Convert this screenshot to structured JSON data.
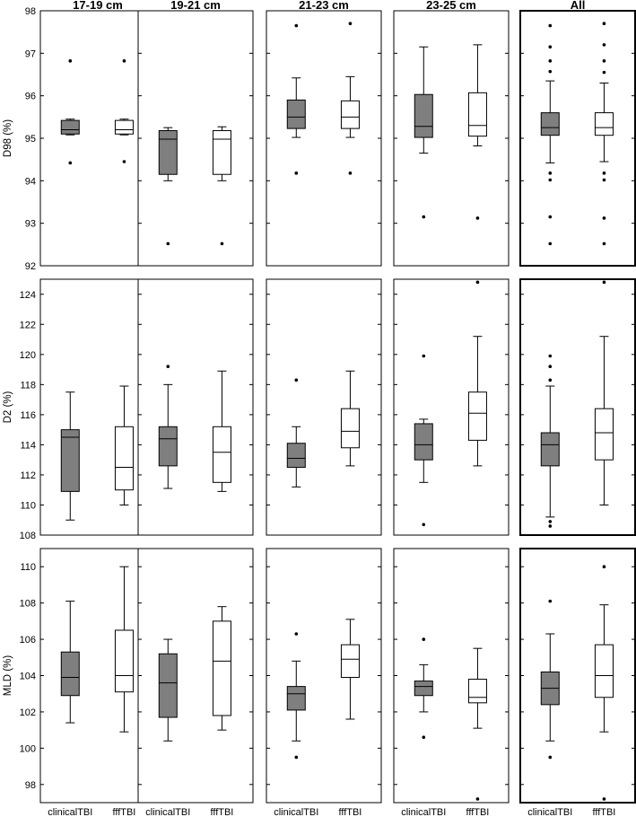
{
  "columns": [
    "17-19 cm",
    "19-21 cm",
    "21-23 cm",
    "23-25 cm",
    "All"
  ],
  "rows": [
    {
      "ylabel": "D98 (%)",
      "ylim": [
        92,
        98
      ],
      "ticks": [
        92,
        93,
        94,
        95,
        96,
        97,
        98
      ]
    },
    {
      "ylabel": "D2 (%)",
      "ylim": [
        108,
        125
      ],
      "ticks": [
        108,
        110,
        112,
        114,
        116,
        118,
        120,
        122,
        124
      ]
    },
    {
      "ylabel": "MLD (%)",
      "ylim": [
        97,
        111
      ],
      "ticks": [
        98,
        100,
        102,
        104,
        106,
        108,
        110
      ]
    }
  ],
  "categories": [
    "clinicalTBI",
    "fffTBI"
  ],
  "colors": {
    "clinicalTBI": "#7f7f7f",
    "fffTBI": "#ffffff",
    "line": "#000000",
    "outlier": "#000000"
  },
  "chart_data": {
    "type": "box",
    "layout": "3 rows x 5 columns",
    "columns": [
      "17-19 cm",
      "19-21 cm",
      "21-23 cm",
      "23-25 cm",
      "All"
    ],
    "series": [
      {
        "name": "clinicalTBI",
        "color": "#7f7f7f"
      },
      {
        "name": "fffTBI",
        "color": "#ffffff"
      }
    ],
    "panels": [
      {
        "metric": "D98 (%)",
        "column": "17-19 cm",
        "boxes": [
          {
            "series": "clinicalTBI",
            "whisker_low": 95.08,
            "q1": 95.1,
            "median": 95.2,
            "q3": 95.42,
            "whisker_high": 95.45,
            "outliers": [
              96.82,
              94.42
            ]
          },
          {
            "series": "fffTBI",
            "whisker_low": 95.08,
            "q1": 95.1,
            "median": 95.2,
            "q3": 95.42,
            "whisker_high": 95.45,
            "outliers": [
              96.82,
              94.45
            ]
          }
        ]
      },
      {
        "metric": "D98 (%)",
        "column": "19-21 cm",
        "boxes": [
          {
            "series": "clinicalTBI",
            "whisker_low": 94.0,
            "q1": 94.15,
            "median": 94.98,
            "q3": 95.18,
            "whisker_high": 95.25,
            "outliers": [
              92.52
            ]
          },
          {
            "series": "fffTBI",
            "whisker_low": 94.0,
            "q1": 94.15,
            "median": 94.98,
            "q3": 95.18,
            "whisker_high": 95.27,
            "outliers": [
              92.52
            ]
          }
        ]
      },
      {
        "metric": "D98 (%)",
        "column": "21-23 cm",
        "boxes": [
          {
            "series": "clinicalTBI",
            "whisker_low": 95.02,
            "q1": 95.23,
            "median": 95.5,
            "q3": 95.9,
            "whisker_high": 96.42,
            "outliers": [
              97.65,
              94.18
            ]
          },
          {
            "series": "fffTBI",
            "whisker_low": 95.02,
            "q1": 95.23,
            "median": 95.5,
            "q3": 95.88,
            "whisker_high": 96.45,
            "outliers": [
              97.7,
              94.18
            ]
          }
        ]
      },
      {
        "metric": "D98 (%)",
        "column": "23-25 cm",
        "boxes": [
          {
            "series": "clinicalTBI",
            "whisker_low": 94.65,
            "q1": 95.02,
            "median": 95.28,
            "q3": 96.03,
            "whisker_high": 97.15,
            "outliers": [
              93.15
            ]
          },
          {
            "series": "fffTBI",
            "whisker_low": 94.82,
            "q1": 95.05,
            "median": 95.3,
            "q3": 96.07,
            "whisker_high": 97.2,
            "outliers": [
              93.12
            ]
          }
        ]
      },
      {
        "metric": "D98 (%)",
        "column": "All",
        "boxes": [
          {
            "series": "clinicalTBI",
            "whisker_low": 94.42,
            "q1": 95.07,
            "median": 95.25,
            "q3": 95.6,
            "whisker_high": 96.35,
            "outliers": [
              97.65,
              97.15,
              96.82,
              96.57,
              94.18,
              94.02,
              93.15,
              92.52
            ]
          },
          {
            "series": "fffTBI",
            "whisker_low": 94.45,
            "q1": 95.07,
            "median": 95.25,
            "q3": 95.6,
            "whisker_high": 96.3,
            "outliers": [
              97.7,
              97.2,
              96.82,
              96.55,
              94.18,
              94.02,
              93.12,
              92.52
            ]
          }
        ]
      },
      {
        "metric": "D2 (%)",
        "column": "17-19 cm",
        "boxes": [
          {
            "series": "clinicalTBI",
            "whisker_low": 109.0,
            "q1": 110.9,
            "median": 114.5,
            "q3": 115.0,
            "whisker_high": 117.5,
            "outliers": []
          },
          {
            "series": "fffTBI",
            "whisker_low": 110.0,
            "q1": 111.0,
            "median": 112.5,
            "q3": 115.2,
            "whisker_high": 117.9,
            "outliers": []
          }
        ]
      },
      {
        "metric": "D2 (%)",
        "column": "19-21 cm",
        "boxes": [
          {
            "series": "clinicalTBI",
            "whisker_low": 111.1,
            "q1": 112.6,
            "median": 114.4,
            "q3": 115.2,
            "whisker_high": 118.0,
            "outliers": [
              119.2
            ]
          },
          {
            "series": "fffTBI",
            "whisker_low": 110.9,
            "q1": 111.5,
            "median": 113.5,
            "q3": 115.2,
            "whisker_high": 118.9,
            "outliers": []
          }
        ]
      },
      {
        "metric": "D2 (%)",
        "column": "21-23 cm",
        "boxes": [
          {
            "series": "clinicalTBI",
            "whisker_low": 111.2,
            "q1": 112.5,
            "median": 113.1,
            "q3": 114.1,
            "whisker_high": 115.2,
            "outliers": [
              118.3
            ]
          },
          {
            "series": "fffTBI",
            "whisker_low": 112.6,
            "q1": 113.8,
            "median": 114.9,
            "q3": 116.4,
            "whisker_high": 118.9,
            "outliers": []
          }
        ]
      },
      {
        "metric": "D2 (%)",
        "column": "23-25 cm",
        "boxes": [
          {
            "series": "clinicalTBI",
            "whisker_low": 111.5,
            "q1": 113.0,
            "median": 114.0,
            "q3": 115.4,
            "whisker_high": 115.7,
            "outliers": [
              119.9,
              108.7
            ]
          },
          {
            "series": "fffTBI",
            "whisker_low": 112.6,
            "q1": 114.3,
            "median": 116.1,
            "q3": 117.5,
            "whisker_high": 121.2,
            "outliers": [
              124.8
            ]
          }
        ]
      },
      {
        "metric": "D2 (%)",
        "column": "All",
        "boxes": [
          {
            "series": "clinicalTBI",
            "whisker_low": 109.2,
            "q1": 112.6,
            "median": 114.0,
            "q3": 114.8,
            "whisker_high": 117.9,
            "outliers": [
              119.9,
              119.2,
              118.3,
              108.9,
              108.6
            ]
          },
          {
            "series": "fffTBI",
            "whisker_low": 110.0,
            "q1": 113.0,
            "median": 114.8,
            "q3": 116.4,
            "whisker_high": 121.2,
            "outliers": [
              124.8
            ]
          }
        ]
      },
      {
        "metric": "MLD (%)",
        "column": "17-19 cm",
        "boxes": [
          {
            "series": "clinicalTBI",
            "whisker_low": 101.4,
            "q1": 102.9,
            "median": 103.9,
            "q3": 105.3,
            "whisker_high": 108.1,
            "outliers": []
          },
          {
            "series": "fffTBI",
            "whisker_low": 100.9,
            "q1": 103.1,
            "median": 104.0,
            "q3": 106.5,
            "whisker_high": 110.0,
            "outliers": []
          }
        ]
      },
      {
        "metric": "MLD (%)",
        "column": "19-21 cm",
        "boxes": [
          {
            "series": "clinicalTBI",
            "whisker_low": 100.4,
            "q1": 101.7,
            "median": 103.6,
            "q3": 105.2,
            "whisker_high": 106.0,
            "outliers": []
          },
          {
            "series": "fffTBI",
            "whisker_low": 101.0,
            "q1": 101.8,
            "median": 104.8,
            "q3": 107.0,
            "whisker_high": 107.8,
            "outliers": []
          }
        ]
      },
      {
        "metric": "MLD (%)",
        "column": "21-23 cm",
        "boxes": [
          {
            "series": "clinicalTBI",
            "whisker_low": 100.4,
            "q1": 102.1,
            "median": 103.0,
            "q3": 103.4,
            "whisker_high": 104.8,
            "outliers": [
              106.3,
              99.5
            ]
          },
          {
            "series": "fffTBI",
            "whisker_low": 101.6,
            "q1": 103.9,
            "median": 104.9,
            "q3": 105.7,
            "whisker_high": 107.1,
            "outliers": []
          }
        ]
      },
      {
        "metric": "MLD (%)",
        "column": "23-25 cm",
        "boxes": [
          {
            "series": "clinicalTBI",
            "whisker_low": 102.0,
            "q1": 102.9,
            "median": 103.4,
            "q3": 103.7,
            "whisker_high": 104.6,
            "outliers": [
              106.0,
              100.6
            ]
          },
          {
            "series": "fffTBI",
            "whisker_low": 101.1,
            "q1": 102.5,
            "median": 102.8,
            "q3": 103.8,
            "whisker_high": 105.5,
            "outliers": [
              97.2
            ]
          }
        ]
      },
      {
        "metric": "MLD (%)",
        "column": "All",
        "boxes": [
          {
            "series": "clinicalTBI",
            "whisker_low": 100.4,
            "q1": 102.4,
            "median": 103.3,
            "q3": 104.2,
            "whisker_high": 106.3,
            "outliers": [
              108.1,
              99.5
            ]
          },
          {
            "series": "fffTBI",
            "whisker_low": 100.9,
            "q1": 102.8,
            "median": 104.0,
            "q3": 105.7,
            "whisker_high": 107.9,
            "outliers": [
              110.0,
              97.2
            ]
          }
        ]
      }
    ]
  }
}
